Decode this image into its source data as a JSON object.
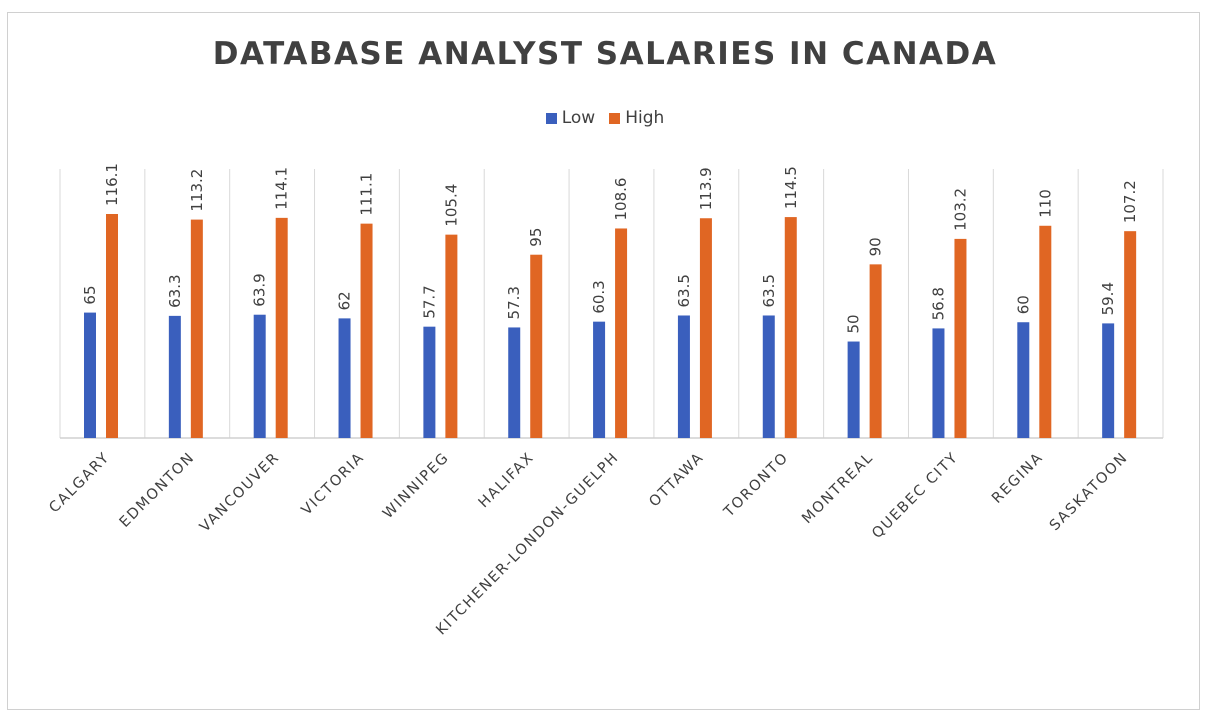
{
  "chart_data": {
    "type": "bar",
    "title": "DATABASE ANALYST SALARIES IN CANADA",
    "xlabel": "",
    "ylabel": "",
    "ylim": [
      0,
      140
    ],
    "grid": "vertical category separators",
    "legend_position": "top",
    "categories": [
      "CALGARY",
      "EDMONTON",
      "VANCOUVER",
      "VICTORIA",
      "WINNIPEG",
      "HALIFAX",
      "KITCHENER-LONDON-GUELPH",
      "OTTAWA",
      "TORONTO",
      "MONTREAL",
      "QUEBEC CITY",
      "REGINA",
      "SASKATOON"
    ],
    "series": [
      {
        "name": "Low",
        "color": "#3a5fbd",
        "values": [
          65,
          63.3,
          63.9,
          62,
          57.7,
          57.3,
          60.3,
          63.5,
          63.5,
          50,
          56.8,
          60,
          59.4
        ],
        "labels": [
          "65",
          "63.3",
          "63.9",
          "62",
          "57.7",
          "57.3",
          "60.3",
          "63.5",
          "63.5",
          "50",
          "56.8",
          "60",
          "59.4"
        ]
      },
      {
        "name": "High",
        "color": "#e06623",
        "values": [
          116.1,
          113.2,
          114.1,
          111.1,
          105.4,
          95,
          108.6,
          113.9,
          114.5,
          90,
          103.2,
          110,
          107.2
        ],
        "labels": [
          "116.1",
          "113.2",
          "114.1",
          "111.1",
          "105.4",
          "95",
          "108.6",
          "113.9",
          "114.5",
          "90",
          "103.2",
          "110",
          "107.2"
        ]
      }
    ]
  }
}
